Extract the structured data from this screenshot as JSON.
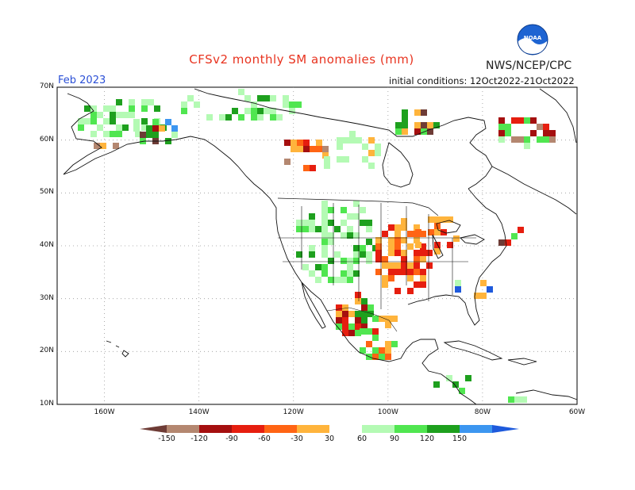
{
  "header": {
    "title": "CFSv2 monthly SM anomalies (mm)",
    "agency": "NWS/NCEP/CPC",
    "logo_text": "NOAA",
    "month": "Feb 2023",
    "initial_conditions": "initial conditions: 12Oct2022-21Oct2022"
  },
  "axes": {
    "lat_labels": [
      "70N",
      "60N",
      "50N",
      "40N",
      "30N",
      "20N",
      "10N"
    ],
    "lon_labels": [
      "160W",
      "140W",
      "120W",
      "100W",
      "80W",
      "60W"
    ]
  },
  "colorbar": {
    "labels": [
      "-150",
      "-120",
      "-90",
      "-60",
      "-30",
      "30",
      "60",
      "90",
      "120",
      "150"
    ],
    "colors": [
      "#6e3c36",
      "#b48770",
      "#a50f0f",
      "#e61e0f",
      "#ff6414",
      "#ffb43c",
      "#ffffff",
      "#b4fab4",
      "#50e650",
      "#1ea01e",
      "#3c96f0",
      "#1e5adc"
    ]
  },
  "colors": {
    "grid": "#999999",
    "coast": "#111111",
    "brown_dark": "#6e3c36",
    "brown_light": "#b48770",
    "red_dark": "#a50f0f",
    "red": "#e61e0f",
    "orange": "#ff6414",
    "light_orange": "#ffb43c",
    "light_green": "#b4fab4",
    "green": "#50e650",
    "dark_green": "#1ea01e",
    "blue": "#3c96f0",
    "dark_blue": "#1e5adc"
  }
}
